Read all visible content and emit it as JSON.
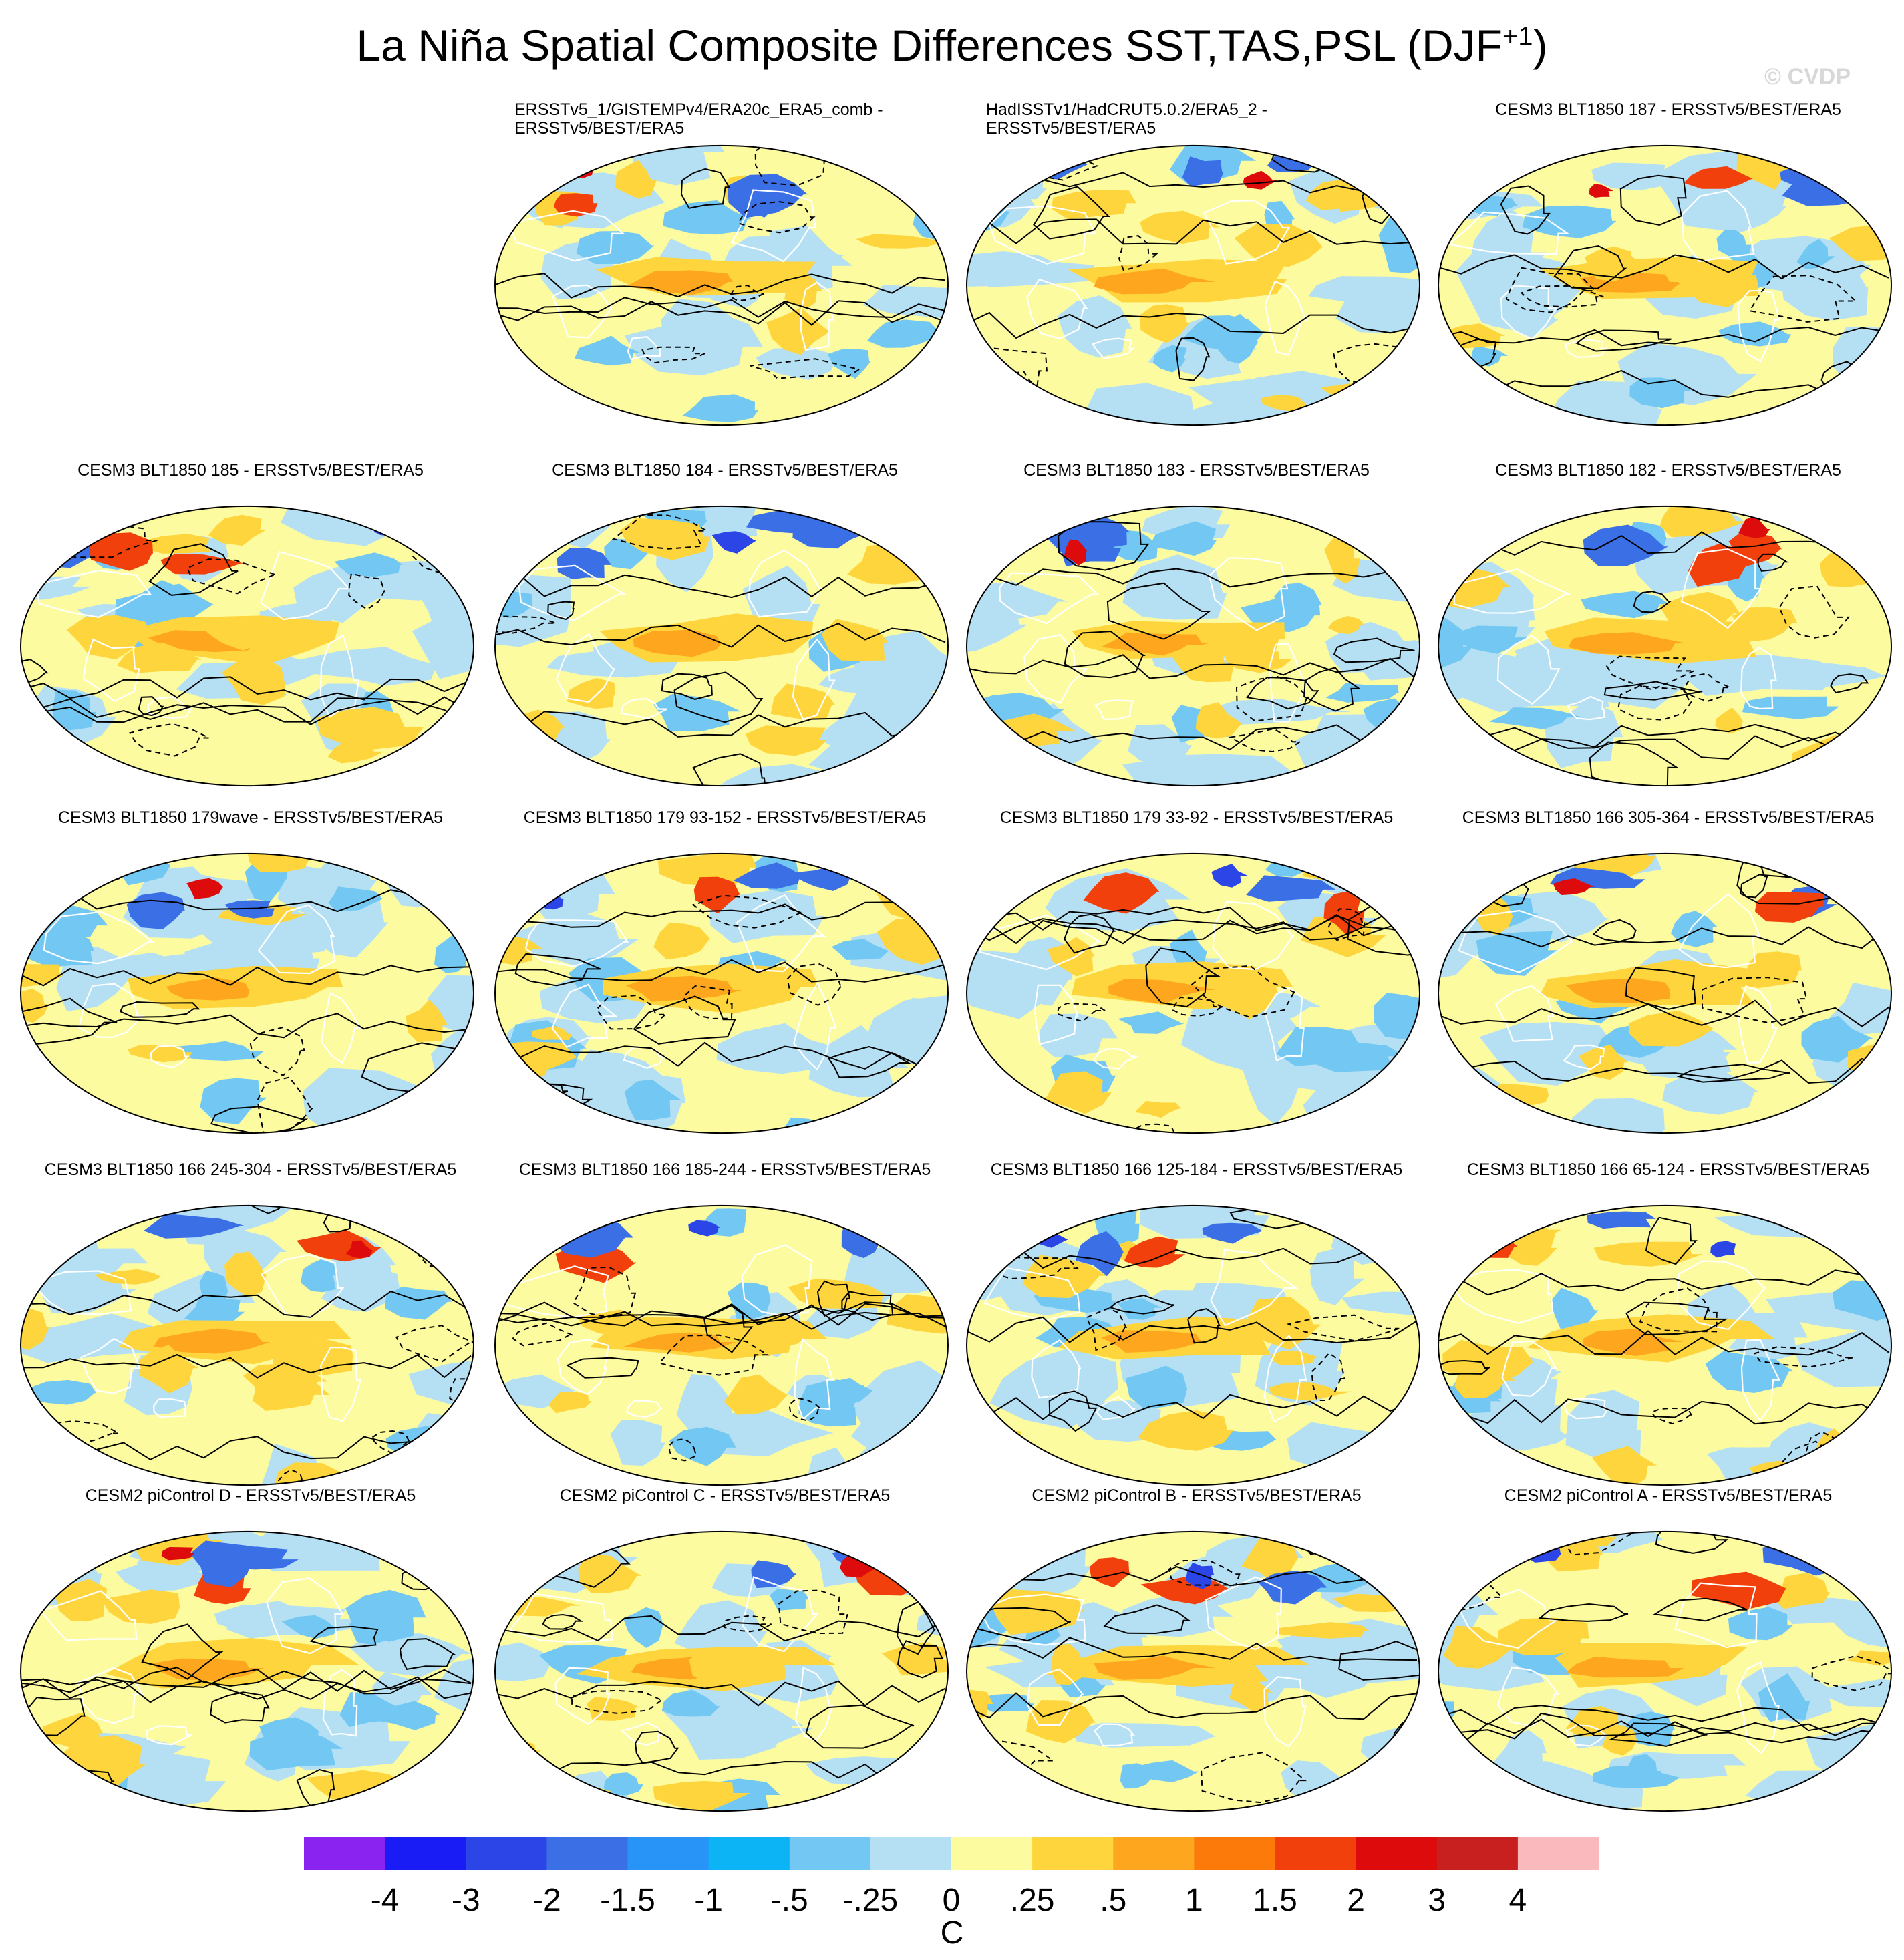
{
  "title": {
    "main": "La Niña Spatial Composite Differences SST,TAS,PSL (DJF",
    "sup": "+1",
    "close": ")"
  },
  "credit": "© CVDP",
  "panels": [
    {
      "id": "p1",
      "lines": [
        "ERSSTv5_1/GISTEMPv4/ERA20c_ERA5_comb -",
        "ERSSTv5/BEST/ERA5"
      ],
      "variant": 1
    },
    {
      "id": "p2",
      "lines": [
        "HadISSTv1/HadCRUT5.0.2/ERA5_2 -",
        "ERSSTv5/BEST/ERA5"
      ],
      "variant": 2
    },
    {
      "id": "p3",
      "lines": [
        "CESM3 BLT1850 187 - ERSSTv5/BEST/ERA5"
      ],
      "variant": 3
    },
    {
      "id": "p4",
      "lines": [
        "CESM3 BLT1850 185 - ERSSTv5/BEST/ERA5"
      ],
      "variant": 4
    },
    {
      "id": "p5",
      "lines": [
        "CESM3 BLT1850 184 - ERSSTv5/BEST/ERA5"
      ],
      "variant": 5
    },
    {
      "id": "p6",
      "lines": [
        "CESM3 BLT1850 183 - ERSSTv5/BEST/ERA5"
      ],
      "variant": 6
    },
    {
      "id": "p7",
      "lines": [
        "CESM3 BLT1850 182 - ERSSTv5/BEST/ERA5"
      ],
      "variant": 7
    },
    {
      "id": "p8",
      "lines": [
        "CESM3 BLT1850 179wave - ERSSTv5/BEST/ERA5"
      ],
      "variant": 8
    },
    {
      "id": "p9",
      "lines": [
        "CESM3 BLT1850 179 93-152 - ERSSTv5/BEST/ERA5"
      ],
      "variant": 9
    },
    {
      "id": "p10",
      "lines": [
        "CESM3 BLT1850 179 33-92 - ERSSTv5/BEST/ERA5"
      ],
      "variant": 10
    },
    {
      "id": "p11",
      "lines": [
        "CESM3 BLT1850 166 305-364 - ERSSTv5/BEST/ERA5"
      ],
      "variant": 11
    },
    {
      "id": "p12",
      "lines": [
        "CESM3 BLT1850 166 245-304 - ERSSTv5/BEST/ERA5"
      ],
      "variant": 12
    },
    {
      "id": "p13",
      "lines": [
        "CESM3 BLT1850 166 185-244 - ERSSTv5/BEST/ERA5"
      ],
      "variant": 13
    },
    {
      "id": "p14",
      "lines": [
        "CESM3 BLT1850 166 125-184 - ERSSTv5/BEST/ERA5"
      ],
      "variant": 14
    },
    {
      "id": "p15",
      "lines": [
        "CESM3 BLT1850 166 65-124 - ERSSTv5/BEST/ERA5"
      ],
      "variant": 15
    },
    {
      "id": "p16",
      "lines": [
        "CESM2 piControl D - ERSSTv5/BEST/ERA5"
      ],
      "variant": 16
    },
    {
      "id": "p17",
      "lines": [
        "CESM2 piControl C - ERSSTv5/BEST/ERA5"
      ],
      "variant": 17
    },
    {
      "id": "p18",
      "lines": [
        "CESM2 piControl B - ERSSTv5/BEST/ERA5"
      ],
      "variant": 18
    },
    {
      "id": "p19",
      "lines": [
        "CESM2 piControl A - ERSSTv5/BEST/ERA5"
      ],
      "variant": 19
    }
  ],
  "colorbar": {
    "colors": [
      "#8b23f0",
      "#1a1cf5",
      "#2b45e6",
      "#3a6fe6",
      "#2894f8",
      "#0db4f5",
      "#72c8f2",
      "#b5e0f4",
      "#fdfba0",
      "#fed53c",
      "#fea61d",
      "#fc7a0a",
      "#f2400c",
      "#dd0b0b",
      "#c81f1f",
      "#f9b9bd"
    ],
    "ticks": [
      "-4",
      "-3",
      "-2",
      "-1.5",
      "-1",
      "-.5",
      "-.25",
      "0",
      ".25",
      ".5",
      "1",
      "1.5",
      "2",
      "3",
      "4"
    ],
    "units": "C"
  }
}
